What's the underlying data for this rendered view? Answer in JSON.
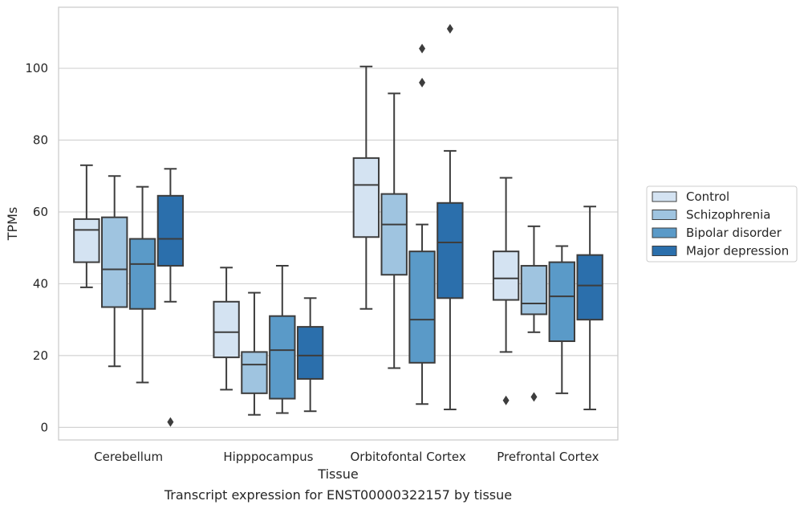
{
  "chart_data": {
    "type": "box",
    "title": "",
    "caption": "Transcript expression for ENST00000322157 by tissue",
    "xlabel": "Tissue",
    "ylabel": "TPMs",
    "ylim": [
      -3.5,
      117
    ],
    "yticks": [
      0,
      20,
      40,
      60,
      80,
      100
    ],
    "grid": "horizontal",
    "legend_position": "right",
    "categories": [
      "Cerebellum",
      "Hipppocampus",
      "Orbitofontal Cortex",
      "Prefrontal Cortex"
    ],
    "series": [
      {
        "name": "Control",
        "color": "#d4e3f2",
        "boxes": [
          {
            "whisker_low": 39,
            "q1": 46,
            "median": 55,
            "q3": 58,
            "whisker_high": 73,
            "outliers": []
          },
          {
            "whisker_low": 10.5,
            "q1": 19.5,
            "median": 26.5,
            "q3": 35,
            "whisker_high": 44.5,
            "outliers": []
          },
          {
            "whisker_low": 33,
            "q1": 53,
            "median": 67.5,
            "q3": 75,
            "whisker_high": 100.5,
            "outliers": []
          },
          {
            "whisker_low": 21,
            "q1": 35.5,
            "median": 41.5,
            "q3": 49,
            "whisker_high": 69.5,
            "outliers": [
              7.5
            ]
          }
        ]
      },
      {
        "name": "Schizophrenia",
        "color": "#9fc4e0",
        "boxes": [
          {
            "whisker_low": 17,
            "q1": 33.5,
            "median": 44,
            "q3": 58.5,
            "whisker_high": 70,
            "outliers": []
          },
          {
            "whisker_low": 3.5,
            "q1": 9.5,
            "median": 17.5,
            "q3": 21,
            "whisker_high": 37.5,
            "outliers": []
          },
          {
            "whisker_low": 16.5,
            "q1": 42.5,
            "median": 56.5,
            "q3": 65,
            "whisker_high": 93,
            "outliers": []
          },
          {
            "whisker_low": 26.5,
            "q1": 31.5,
            "median": 34.5,
            "q3": 45,
            "whisker_high": 56,
            "outliers": [
              8.5
            ]
          }
        ]
      },
      {
        "name": "Bipolar disorder",
        "color": "#5a9ac8",
        "boxes": [
          {
            "whisker_low": 12.5,
            "q1": 33,
            "median": 45.5,
            "q3": 52.5,
            "whisker_high": 67,
            "outliers": []
          },
          {
            "whisker_low": 4,
            "q1": 8,
            "median": 21.5,
            "q3": 31,
            "whisker_high": 45,
            "outliers": []
          },
          {
            "whisker_low": 6.5,
            "q1": 18,
            "median": 30,
            "q3": 49,
            "whisker_high": 56.5,
            "outliers": [
              96,
              105.5
            ]
          },
          {
            "whisker_low": 9.5,
            "q1": 24,
            "median": 36.5,
            "q3": 46,
            "whisker_high": 50.5,
            "outliers": []
          }
        ]
      },
      {
        "name": "Major depression",
        "color": "#2b6fac",
        "boxes": [
          {
            "whisker_low": 35,
            "q1": 45,
            "median": 52.5,
            "q3": 64.5,
            "whisker_high": 72,
            "outliers": [
              1.5
            ]
          },
          {
            "whisker_low": 4.5,
            "q1": 13.5,
            "median": 20,
            "q3": 28,
            "whisker_high": 36,
            "outliers": []
          },
          {
            "whisker_low": 5,
            "q1": 36,
            "median": 51.5,
            "q3": 62.5,
            "whisker_high": 77,
            "outliers": [
              111
            ]
          },
          {
            "whisker_low": 5,
            "q1": 30,
            "median": 39.5,
            "q3": 48,
            "whisker_high": 61.5,
            "outliers": []
          }
        ]
      }
    ]
  }
}
